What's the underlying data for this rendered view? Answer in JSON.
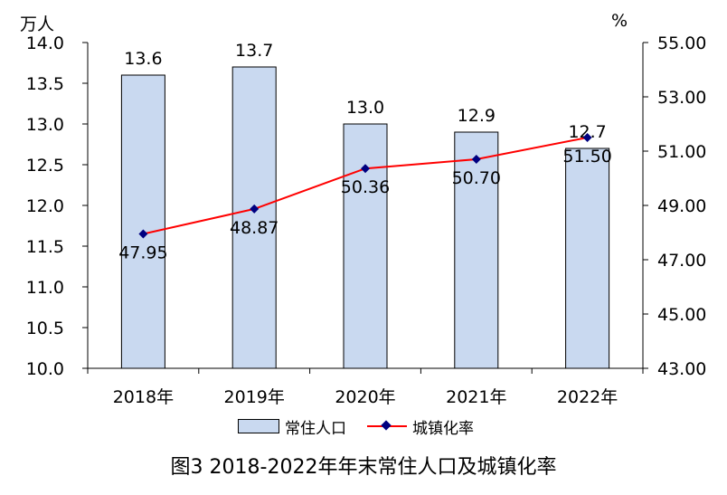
{
  "chart_data": {
    "type": "bar+line",
    "categories": [
      "2018年",
      "2019年",
      "2020年",
      "2021年",
      "2022年"
    ],
    "series": [
      {
        "name": "常住人口",
        "type": "bar",
        "axis": "left",
        "values": [
          13.6,
          13.7,
          13.0,
          12.9,
          12.7
        ],
        "labels": [
          "13.6",
          "13.7",
          "13.0",
          "12.9",
          "12.7"
        ]
      },
      {
        "name": "城镇化率",
        "type": "line",
        "axis": "right",
        "values": [
          47.95,
          48.87,
          50.36,
          50.7,
          51.5
        ],
        "labels": [
          "47.95",
          "48.87",
          "50.36",
          "50.70",
          "51.50"
        ]
      }
    ],
    "y1": {
      "unit": "万人",
      "min": 10.0,
      "max": 14.0,
      "step": 0.5,
      "ticks": [
        "10.0",
        "10.5",
        "11.0",
        "11.5",
        "12.0",
        "12.5",
        "13.0",
        "13.5",
        "14.0"
      ]
    },
    "y2": {
      "unit": "%",
      "min": 43.0,
      "max": 55.0,
      "step": 2.0,
      "ticks": [
        "43.00",
        "45.00",
        "47.00",
        "49.00",
        "51.00",
        "53.00",
        "55.00"
      ]
    },
    "title": "图3 2018-2022年年末常住人口及城镇化率",
    "colors": {
      "bar_fill": "#c9d9f0",
      "bar_stroke": "#000000",
      "line": "#ff0000",
      "marker": "#000080"
    }
  }
}
